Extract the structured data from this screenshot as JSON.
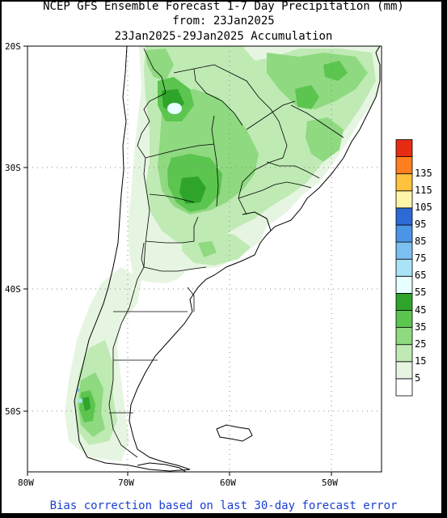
{
  "title": {
    "line1": "NCEP GFS Ensemble Forecast 1-7 Day Precipitation (mm)",
    "line2": "from: 23Jan2025",
    "line3": "23Jan2025-29Jan2025 Accumulation"
  },
  "lat_labels": [
    "20S",
    "30S",
    "40S",
    "50S"
  ],
  "lon_labels": [
    "80W",
    "70W",
    "60W",
    "50W"
  ],
  "colorbar": {
    "levels": [
      "5",
      "15",
      "25",
      "35",
      "45",
      "55",
      "65",
      "75",
      "85",
      "95",
      "105",
      "115",
      "135"
    ],
    "colors": [
      "#ffffff",
      "#e6f5e1",
      "#bfeab4",
      "#8fd980",
      "#5bc54f",
      "#2ea42a",
      "#e6ffff",
      "#a8e4f5",
      "#7cc0f0",
      "#4c94e6",
      "#2d6ad6",
      "#fff5a8",
      "#ffc23c",
      "#ff7f1e",
      "#e62d14"
    ]
  },
  "footer": "Bias correction based on last 30-day forecast error"
}
